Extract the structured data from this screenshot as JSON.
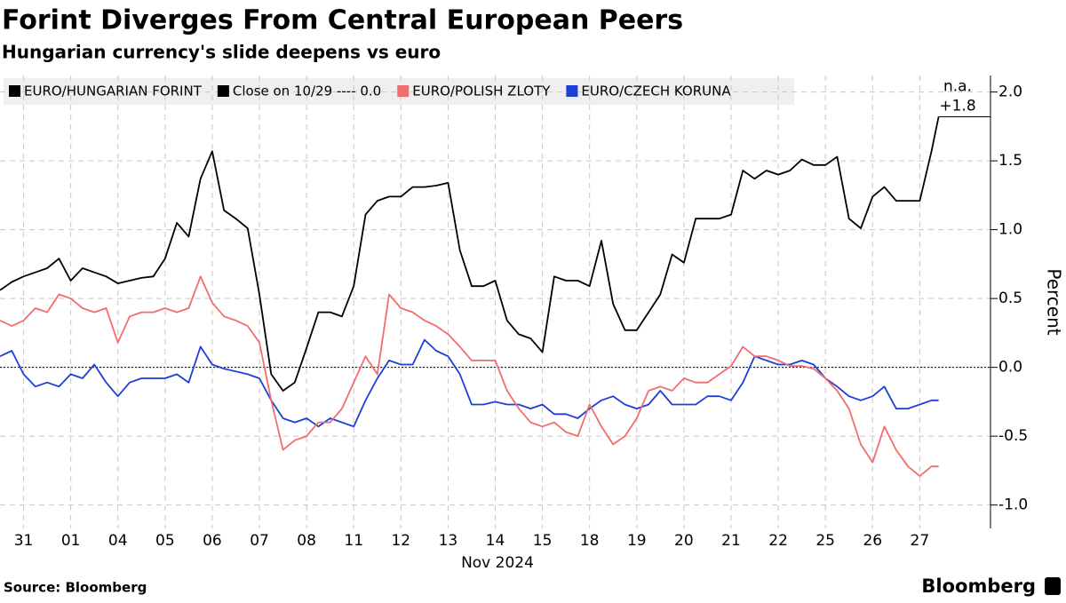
{
  "chart_data": {
    "type": "line",
    "title": "Forint Diverges From Central European Peers",
    "subtitle": "Hungarian currency's slide deepens vs euro",
    "y_label": "Percent",
    "x_label": "Nov 2024",
    "source": "Source: Bloomberg",
    "brand": "Bloomberg",
    "end_labels": [
      "n.a.",
      "+1.8"
    ],
    "reference_line": {
      "name": "Close on 10/29 ---- 0.0",
      "value": 0,
      "color": "#000000"
    },
    "grid": true,
    "xlim": [
      -0.5,
      20.5
    ],
    "ylim": [
      -1.17,
      2.12
    ],
    "yticks": [
      {
        "value": 2,
        "label": "2.0"
      },
      {
        "value": 1.5,
        "label": "1.5"
      },
      {
        "value": 1,
        "label": "1.0"
      },
      {
        "value": 0.5,
        "label": "0.5"
      },
      {
        "value": 0,
        "label": "0.0"
      },
      {
        "value": -0.5,
        "label": "-0.5"
      },
      {
        "value": -1,
        "label": "-1.0"
      }
    ],
    "xticks": [
      {
        "value": 0,
        "label": "31"
      },
      {
        "value": 1,
        "label": "01"
      },
      {
        "value": 2,
        "label": "04"
      },
      {
        "value": 3,
        "label": "05"
      },
      {
        "value": 4,
        "label": "06"
      },
      {
        "value": 5,
        "label": "07"
      },
      {
        "value": 6,
        "label": "08"
      },
      {
        "value": 7,
        "label": "11"
      },
      {
        "value": 8,
        "label": "12"
      },
      {
        "value": 9,
        "label": "13"
      },
      {
        "value": 10,
        "label": "14"
      },
      {
        "value": 11,
        "label": "15"
      },
      {
        "value": 12,
        "label": "18"
      },
      {
        "value": 13,
        "label": "19"
      },
      {
        "value": 14,
        "label": "20"
      },
      {
        "value": 15,
        "label": "21"
      },
      {
        "value": 16,
        "label": "22"
      },
      {
        "value": 17,
        "label": "25"
      },
      {
        "value": 18,
        "label": "26"
      },
      {
        "value": 19,
        "label": "27"
      }
    ],
    "x": [
      -0.5,
      -0.25,
      0,
      0.25,
      0.5,
      0.75,
      1,
      1.25,
      1.5,
      1.75,
      2,
      2.25,
      2.5,
      2.75,
      3,
      3.25,
      3.5,
      3.75,
      4,
      4.25,
      4.5,
      4.75,
      5,
      5.25,
      5.5,
      5.75,
      6,
      6.25,
      6.5,
      6.75,
      7,
      7.25,
      7.5,
      7.75,
      8,
      8.25,
      8.5,
      8.75,
      9,
      9.25,
      9.5,
      9.75,
      10,
      10.25,
      10.5,
      10.75,
      11,
      11.25,
      11.5,
      11.75,
      12,
      12.25,
      12.5,
      12.75,
      13,
      13.25,
      13.5,
      13.75,
      14,
      14.25,
      14.5,
      14.75,
      15,
      15.25,
      15.5,
      15.75,
      16,
      16.25,
      16.5,
      16.75,
      17,
      17.25,
      17.5,
      17.75,
      18,
      18.25,
      18.5,
      18.75,
      19,
      19.25,
      19.4
    ],
    "series": [
      {
        "name": "EURO/HUNGARIAN FORINT",
        "color": "#000000",
        "values": [
          0.56,
          0.62,
          0.66,
          0.69,
          0.72,
          0.79,
          0.63,
          0.72,
          0.69,
          0.66,
          0.61,
          0.63,
          0.65,
          0.66,
          0.79,
          1.05,
          0.95,
          1.37,
          1.57,
          1.14,
          1.08,
          1.01,
          0.53,
          -0.05,
          -0.17,
          -0.11,
          0.14,
          0.4,
          0.4,
          0.37,
          0.59,
          1.11,
          1.21,
          1.24,
          1.24,
          1.31,
          1.31,
          1.32,
          1.34,
          0.85,
          0.59,
          0.59,
          0.63,
          0.34,
          0.24,
          0.21,
          0.11,
          0.66,
          0.63,
          0.63,
          0.59,
          0.92,
          0.46,
          0.27,
          0.27,
          0.4,
          0.53,
          0.82,
          0.76,
          1.08,
          1.08,
          1.08,
          1.11,
          1.43,
          1.37,
          1.43,
          1.4,
          1.43,
          1.51,
          1.47,
          1.47,
          1.53,
          1.08,
          1.01,
          1.24,
          1.31,
          1.21,
          1.21,
          1.21,
          1.57,
          1.82
        ]
      },
      {
        "name": "EURO/POLISH ZLOTY",
        "color": "#f26d6d",
        "values": [
          0.34,
          0.3,
          0.34,
          0.43,
          0.4,
          0.53,
          0.5,
          0.43,
          0.4,
          0.43,
          0.18,
          0.37,
          0.4,
          0.4,
          0.43,
          0.4,
          0.43,
          0.66,
          0.47,
          0.37,
          0.34,
          0.3,
          0.18,
          -0.24,
          -0.6,
          -0.53,
          -0.5,
          -0.4,
          -0.4,
          -0.3,
          -0.11,
          0.08,
          -0.05,
          0.53,
          0.43,
          0.4,
          0.34,
          0.3,
          0.24,
          0.15,
          0.05,
          0.05,
          0.05,
          -0.17,
          -0.3,
          -0.4,
          -0.43,
          -0.4,
          -0.47,
          -0.5,
          -0.27,
          -0.43,
          -0.56,
          -0.5,
          -0.37,
          -0.17,
          -0.14,
          -0.17,
          -0.08,
          -0.11,
          -0.11,
          -0.05,
          0.01,
          0.15,
          0.08,
          0.08,
          0.05,
          0.01,
          0.01,
          -0.01,
          -0.08,
          -0.17,
          -0.3,
          -0.56,
          -0.69,
          -0.43,
          -0.6,
          -0.72,
          -0.79,
          -0.72,
          -0.72
        ]
      },
      {
        "name": "EURO/CZECH KORUNA",
        "color": "#1d3fd6",
        "values": [
          0.08,
          0.12,
          -0.05,
          -0.14,
          -0.11,
          -0.14,
          -0.05,
          -0.08,
          0.02,
          -0.11,
          -0.21,
          -0.11,
          -0.08,
          -0.08,
          -0.08,
          -0.05,
          -0.11,
          0.15,
          0.02,
          -0.01,
          -0.03,
          -0.05,
          -0.08,
          -0.24,
          -0.37,
          -0.4,
          -0.37,
          -0.43,
          -0.37,
          -0.4,
          -0.43,
          -0.24,
          -0.08,
          0.05,
          0.02,
          0.02,
          0.2,
          0.12,
          0.08,
          -0.05,
          -0.27,
          -0.27,
          -0.25,
          -0.27,
          -0.27,
          -0.3,
          -0.27,
          -0.34,
          -0.34,
          -0.37,
          -0.3,
          -0.24,
          -0.21,
          -0.27,
          -0.3,
          -0.27,
          -0.17,
          -0.27,
          -0.27,
          -0.27,
          -0.21,
          -0.21,
          -0.24,
          -0.11,
          0.08,
          0.05,
          0.02,
          0.02,
          0.05,
          0.02,
          -0.08,
          -0.14,
          -0.21,
          -0.24,
          -0.21,
          -0.14,
          -0.3,
          -0.3,
          -0.27,
          -0.24,
          -0.24
        ]
      }
    ]
  }
}
